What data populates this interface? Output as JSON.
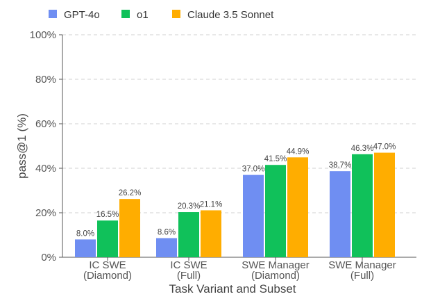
{
  "chart_data": {
    "type": "bar",
    "title": "",
    "xlabel": "Task Variant and Subset",
    "ylabel": "pass@1 (%)",
    "ylim": [
      0,
      100
    ],
    "y_ticks": [
      "0%",
      "20%",
      "40%",
      "60%",
      "80%",
      "100%"
    ],
    "grid": "horizontal dashed",
    "legend_position": "top-left",
    "categories": [
      [
        "IC SWE",
        "(Diamond)"
      ],
      [
        "IC SWE",
        "(Full)"
      ],
      [
        "SWE Manager",
        "(Diamond)"
      ],
      [
        "SWE Manager",
        "(Full)"
      ]
    ],
    "series": [
      {
        "name": "GPT-4o",
        "color": "#6f8ef2",
        "values": [
          8.0,
          8.6,
          37.0,
          38.7
        ],
        "labels": [
          "8.0%",
          "8.6%",
          "37.0%",
          "38.7%"
        ]
      },
      {
        "name": "o1",
        "color": "#10c15a",
        "values": [
          16.5,
          20.3,
          41.5,
          46.3
        ],
        "labels": [
          "16.5%",
          "20.3%",
          "41.5%",
          "46.3%"
        ]
      },
      {
        "name": "Claude 3.5 Sonnet",
        "color": "#ffad00",
        "values": [
          26.2,
          21.1,
          44.9,
          47.0
        ],
        "labels": [
          "26.2%",
          "21.1%",
          "44.9%",
          "47.0%"
        ]
      }
    ]
  }
}
